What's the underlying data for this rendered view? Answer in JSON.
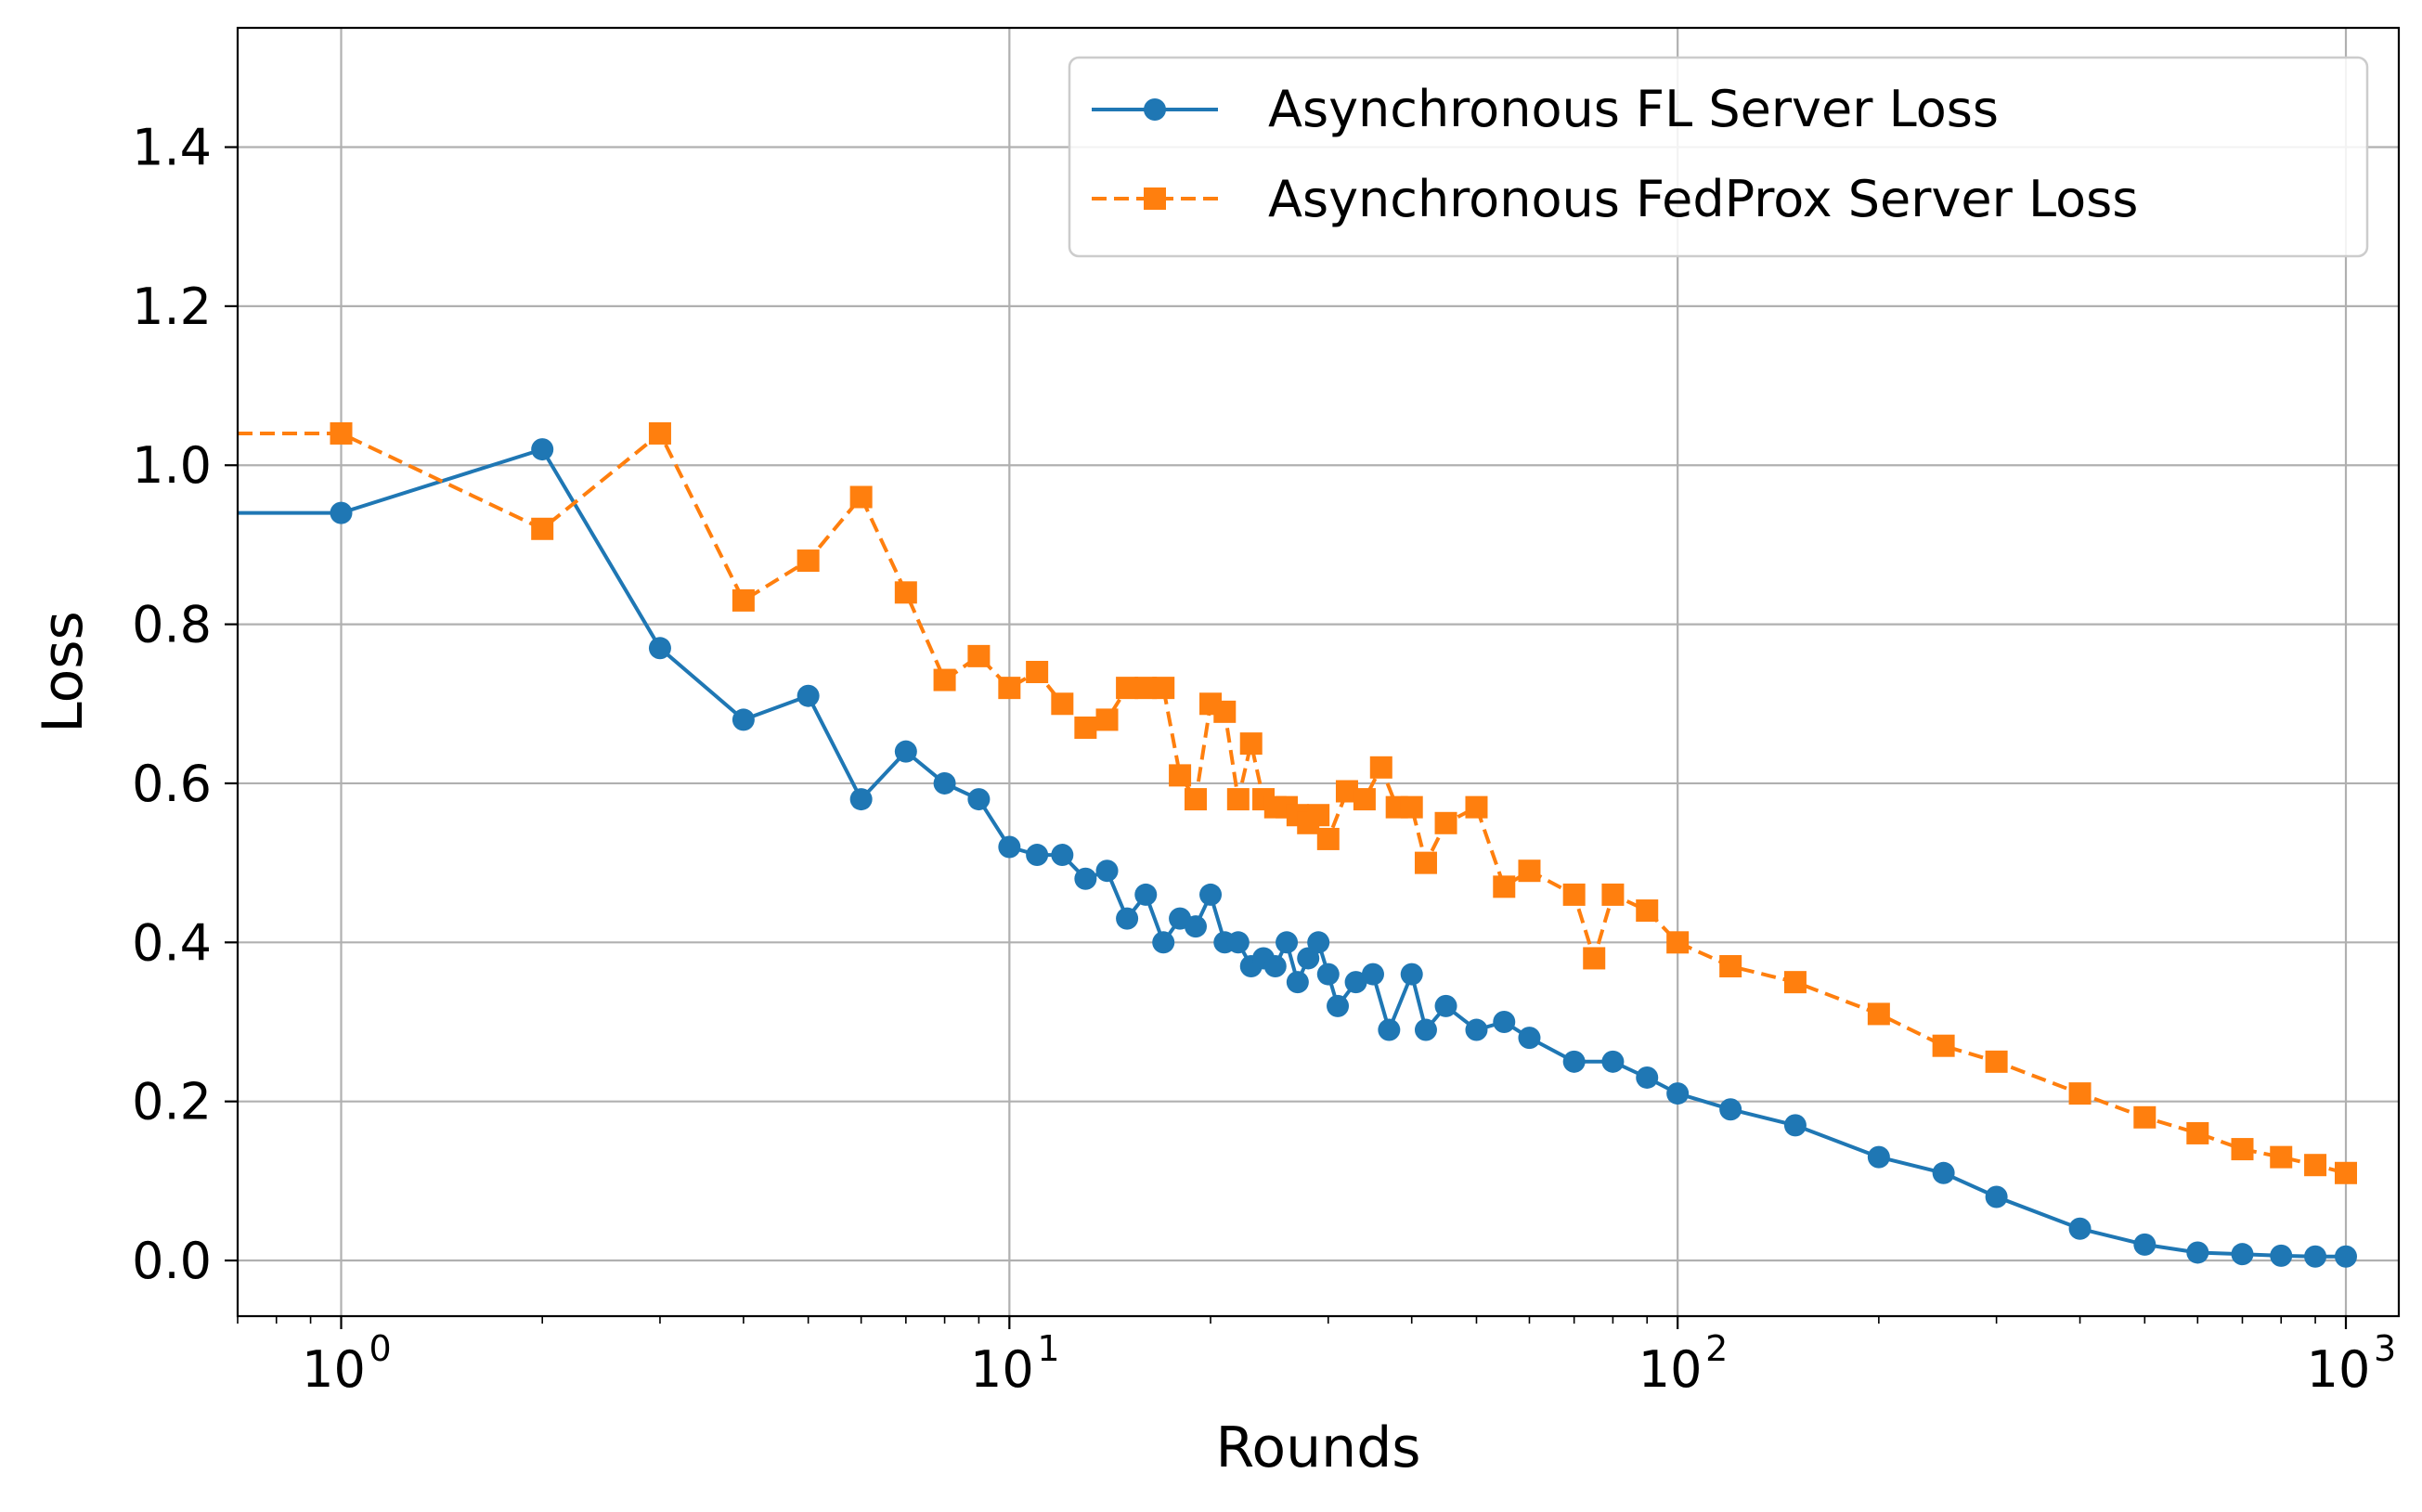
{
  "chart_data": {
    "type": "line",
    "xlabel": "Rounds",
    "ylabel": "Loss",
    "xscale": "log",
    "xlim": [
      0.7,
      1200
    ],
    "ylim": [
      -0.07,
      1.55
    ],
    "grid": true,
    "legend_position": "top-right",
    "x_ticks": [
      {
        "value": 1,
        "base": "10",
        "exp": "0"
      },
      {
        "value": 10,
        "base": "10",
        "exp": "1"
      },
      {
        "value": 100,
        "base": "10",
        "exp": "2"
      },
      {
        "value": 1000,
        "base": "10",
        "exp": "3"
      }
    ],
    "y_ticks": [
      {
        "value": 0.0,
        "label": "0.0"
      },
      {
        "value": 0.2,
        "label": "0.2"
      },
      {
        "value": 0.4,
        "label": "0.4"
      },
      {
        "value": 0.6,
        "label": "0.6"
      },
      {
        "value": 0.8,
        "label": "0.8"
      },
      {
        "value": 1.0,
        "label": "1.0"
      },
      {
        "value": 1.2,
        "label": "1.2"
      },
      {
        "value": 1.4,
        "label": "1.4"
      }
    ],
    "series": [
      {
        "name": "Asynchronous FL Server Loss",
        "color": "#1f77b4",
        "linestyle": "solid",
        "marker": "circle",
        "points": [
          [
            0,
            0.94
          ],
          [
            1,
            0.94
          ],
          [
            2,
            1.02
          ],
          [
            3,
            0.77
          ],
          [
            4,
            0.68
          ],
          [
            5,
            0.71
          ],
          [
            6,
            0.58
          ],
          [
            7,
            0.64
          ],
          [
            8,
            0.6
          ],
          [
            9,
            0.58
          ],
          [
            10,
            0.52
          ],
          [
            11,
            0.51
          ],
          [
            12,
            0.51
          ],
          [
            13,
            0.48
          ],
          [
            14,
            0.49
          ],
          [
            15,
            0.43
          ],
          [
            16,
            0.46
          ],
          [
            17,
            0.4
          ],
          [
            18,
            0.43
          ],
          [
            19,
            0.42
          ],
          [
            20,
            0.46
          ],
          [
            21,
            0.4
          ],
          [
            22,
            0.4
          ],
          [
            23,
            0.37
          ],
          [
            24,
            0.38
          ],
          [
            25,
            0.37
          ],
          [
            26,
            0.4
          ],
          [
            27,
            0.35
          ],
          [
            28,
            0.38
          ],
          [
            29,
            0.4
          ],
          [
            30,
            0.36
          ],
          [
            31,
            0.32
          ],
          [
            33,
            0.35
          ],
          [
            35,
            0.36
          ],
          [
            37,
            0.29
          ],
          [
            40,
            0.36
          ],
          [
            42,
            0.29
          ],
          [
            45,
            0.32
          ],
          [
            50,
            0.29
          ],
          [
            55,
            0.3
          ],
          [
            60,
            0.28
          ],
          [
            70,
            0.25
          ],
          [
            80,
            0.25
          ],
          [
            90,
            0.23
          ],
          [
            100,
            0.21
          ],
          [
            120,
            0.19
          ],
          [
            150,
            0.17
          ],
          [
            200,
            0.13
          ],
          [
            250,
            0.11
          ],
          [
            300,
            0.08
          ],
          [
            400,
            0.04
          ],
          [
            500,
            0.02
          ],
          [
            600,
            0.01
          ],
          [
            700,
            0.008
          ],
          [
            800,
            0.006
          ],
          [
            900,
            0.005
          ],
          [
            1000,
            0.005
          ]
        ]
      },
      {
        "name": "Asynchronous FedProx Server Loss",
        "color": "#ff7f0e",
        "linestyle": "dashed",
        "marker": "square",
        "points": [
          [
            0,
            1.04
          ],
          [
            1,
            1.04
          ],
          [
            2,
            0.92
          ],
          [
            3,
            1.04
          ],
          [
            4,
            0.83
          ],
          [
            5,
            0.88
          ],
          [
            6,
            0.96
          ],
          [
            7,
            0.84
          ],
          [
            8,
            0.73
          ],
          [
            9,
            0.76
          ],
          [
            10,
            0.72
          ],
          [
            11,
            0.74
          ],
          [
            12,
            0.7
          ],
          [
            13,
            0.67
          ],
          [
            14,
            0.68
          ],
          [
            15,
            0.72
          ],
          [
            16,
            0.72
          ],
          [
            17,
            0.72
          ],
          [
            18,
            0.61
          ],
          [
            19,
            0.58
          ],
          [
            20,
            0.7
          ],
          [
            21,
            0.69
          ],
          [
            22,
            0.58
          ],
          [
            23,
            0.65
          ],
          [
            24,
            0.58
          ],
          [
            25,
            0.57
          ],
          [
            26,
            0.57
          ],
          [
            27,
            0.56
          ],
          [
            28,
            0.55
          ],
          [
            29,
            0.56
          ],
          [
            30,
            0.53
          ],
          [
            32,
            0.59
          ],
          [
            34,
            0.58
          ],
          [
            36,
            0.62
          ],
          [
            38,
            0.57
          ],
          [
            40,
            0.57
          ],
          [
            42,
            0.5
          ],
          [
            45,
            0.55
          ],
          [
            50,
            0.57
          ],
          [
            55,
            0.47
          ],
          [
            60,
            0.49
          ],
          [
            70,
            0.46
          ],
          [
            75,
            0.38
          ],
          [
            80,
            0.46
          ],
          [
            90,
            0.44
          ],
          [
            100,
            0.4
          ],
          [
            120,
            0.37
          ],
          [
            150,
            0.35
          ],
          [
            200,
            0.31
          ],
          [
            250,
            0.27
          ],
          [
            300,
            0.25
          ],
          [
            400,
            0.21
          ],
          [
            500,
            0.18
          ],
          [
            600,
            0.16
          ],
          [
            700,
            0.14
          ],
          [
            800,
            0.13
          ],
          [
            900,
            0.12
          ],
          [
            1000,
            0.11
          ]
        ]
      }
    ]
  }
}
